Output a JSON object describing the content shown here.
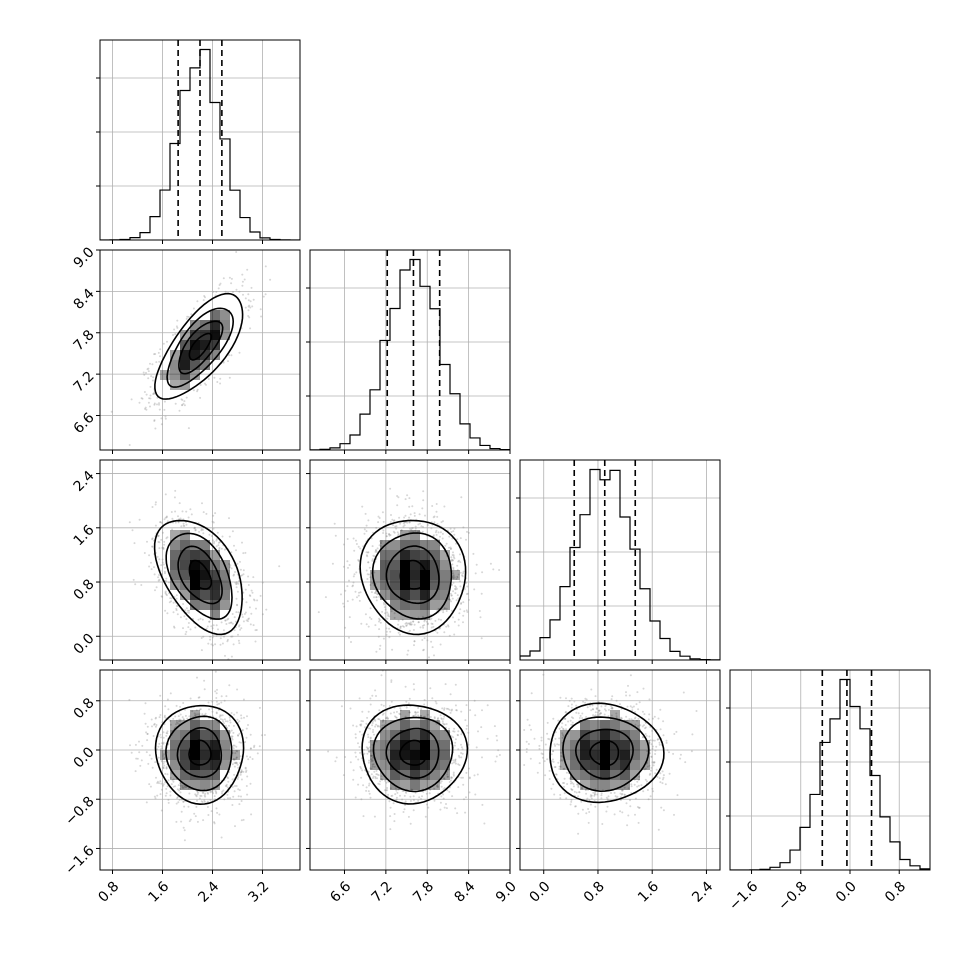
{
  "chart_data": {
    "type": "corner",
    "title": "",
    "parameters": [
      {
        "index": 0,
        "range": [
          0.6,
          3.8
        ],
        "ticks": [
          "0.8",
          "1.6",
          "2.4",
          "3.2"
        ],
        "tick_values": [
          0.8,
          1.6,
          2.4,
          3.2
        ],
        "mean": 2.2,
        "sigma": 0.35,
        "quantiles": [
          1.85,
          2.2,
          2.55
        ]
      },
      {
        "index": 1,
        "range": [
          6.1,
          9.0
        ],
        "ticks": [
          "6.6",
          "7.2",
          "7.8",
          "8.4",
          "9.0"
        ],
        "tick_values": [
          6.6,
          7.2,
          7.8,
          8.4,
          9.0
        ],
        "mean": 7.6,
        "sigma": 0.38,
        "quantiles": [
          7.22,
          7.6,
          7.98
        ]
      },
      {
        "index": 2,
        "range": [
          -0.35,
          2.6
        ],
        "ticks": [
          "0.0",
          "0.8",
          "1.6",
          "2.4"
        ],
        "tick_values": [
          0.0,
          0.8,
          1.6,
          2.4
        ],
        "mean": 0.9,
        "sigma": 0.42,
        "quantiles": [
          0.45,
          0.9,
          1.35
        ]
      },
      {
        "index": 3,
        "range": [
          -1.95,
          1.3
        ],
        "ticks": [
          "−1.6",
          "−0.8",
          "0.0",
          "0.8"
        ],
        "tick_values": [
          -1.6,
          -0.8,
          0.0,
          0.8
        ],
        "mean": -0.05,
        "sigma": 0.4,
        "quantiles": [
          -0.45,
          -0.05,
          0.35
        ]
      }
    ],
    "correlations": {
      "0-1": 0.7,
      "0-2": -0.45,
      "1-2": -0.05,
      "0-3": 0.0,
      "1-3": 0.0,
      "2-3": 0.0
    },
    "histogram_bins": 20,
    "contour_levels_sigma": [
      0.5,
      1.0,
      1.5,
      2.0
    ],
    "grid": true,
    "colors": {
      "axes": "#000000",
      "grid": "#b0b0b0",
      "points": "#8c8c8c",
      "density": "#000000"
    }
  }
}
